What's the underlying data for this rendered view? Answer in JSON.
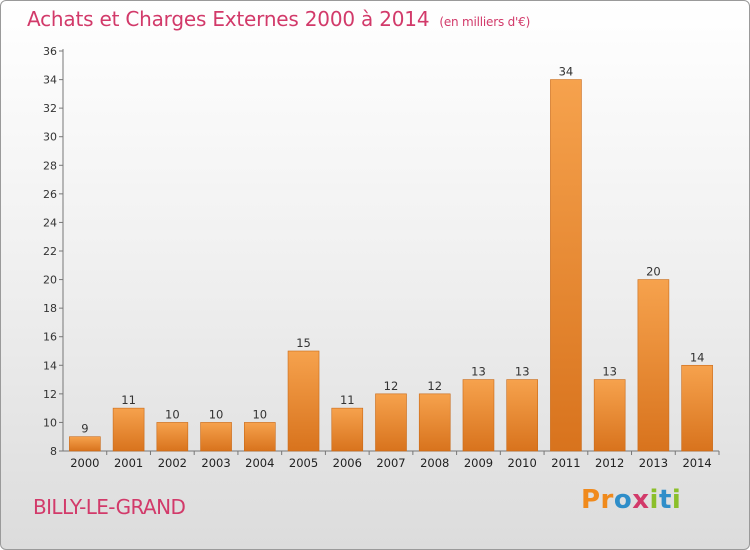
{
  "header": {
    "title": "Achats et Charges Externes 2000 à 2014",
    "unit": "(en milliers d'€)"
  },
  "footer": {
    "commune": "BILLY-LE-GRAND",
    "logo": "Proxiti"
  },
  "colors": {
    "title": "#d23a6a",
    "bar_top": "#f6a24d",
    "bar_bottom": "#d8731d"
  },
  "chart_data": {
    "type": "bar",
    "title": "Achats et Charges Externes 2000 à 2014",
    "subtitle": "(en milliers d'€)",
    "categories": [
      "2000",
      "2001",
      "2002",
      "2003",
      "2004",
      "2005",
      "2006",
      "2007",
      "2008",
      "2009",
      "2010",
      "2011",
      "2012",
      "2013",
      "2014"
    ],
    "values": [
      9,
      11,
      10,
      10,
      10,
      15,
      11,
      12,
      12,
      13,
      13,
      34,
      13,
      20,
      14
    ],
    "ylim": [
      8,
      36
    ],
    "yticks": [
      8,
      10,
      12,
      14,
      16,
      18,
      20,
      22,
      24,
      26,
      28,
      30,
      32,
      34,
      36
    ],
    "grid": false,
    "data_labels": true
  }
}
